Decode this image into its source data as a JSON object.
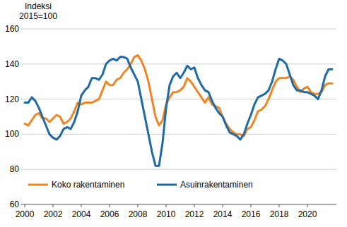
{
  "chart_data": {
    "type": "line",
    "y_label": "Indeksi 2015=100",
    "x": [
      2000,
      2000.25,
      2000.5,
      2000.75,
      2001,
      2001.25,
      2001.5,
      2001.75,
      2002,
      2002.25,
      2002.5,
      2002.75,
      2003,
      2003.25,
      2003.5,
      2003.75,
      2004,
      2004.25,
      2004.5,
      2004.75,
      2005,
      2005.25,
      2005.5,
      2005.75,
      2006,
      2006.25,
      2006.5,
      2006.75,
      2007,
      2007.25,
      2007.5,
      2007.75,
      2008,
      2008.25,
      2008.5,
      2008.75,
      2009,
      2009.25,
      2009.5,
      2009.75,
      2010,
      2010.25,
      2010.5,
      2010.75,
      2011,
      2011.25,
      2011.5,
      2011.75,
      2012,
      2012.25,
      2012.5,
      2012.75,
      2013,
      2013.25,
      2013.5,
      2013.75,
      2014,
      2014.25,
      2014.5,
      2014.75,
      2015,
      2015.25,
      2015.5,
      2015.75,
      2016,
      2016.25,
      2016.5,
      2016.75,
      2017,
      2017.25,
      2017.5,
      2017.75,
      2018,
      2018.25,
      2018.5,
      2018.75,
      2019,
      2019.25,
      2019.5,
      2019.75,
      2020,
      2020.25,
      2020.5,
      2020.75,
      2021,
      2021.25,
      2021.5,
      2021.75
    ],
    "series": [
      {
        "name": "Koko rakentaminen",
        "color": "#ef8523",
        "values": [
          106,
          105,
          108,
          111,
          112,
          109,
          109,
          107,
          109,
          111,
          110,
          106,
          107,
          109,
          113,
          118,
          117,
          118,
          118,
          118,
          119,
          120,
          125,
          130,
          128,
          128,
          131,
          132,
          135,
          137,
          140,
          144,
          145,
          142,
          137,
          130,
          120,
          110,
          105,
          108,
          117,
          121,
          124,
          124,
          125,
          127,
          132,
          130,
          127,
          124,
          121,
          118,
          121,
          117,
          116,
          115,
          110,
          106,
          103,
          101,
          100,
          100,
          99,
          103,
          104,
          108,
          113,
          114,
          116,
          120,
          125,
          130,
          132,
          132,
          132,
          133,
          131,
          127,
          124,
          126,
          127,
          124,
          123,
          123,
          124,
          128,
          129,
          129
        ]
      },
      {
        "name": "Asuinrakentaminen",
        "color": "#1d6aa5",
        "values": [
          118,
          118,
          121,
          119,
          115,
          110,
          105,
          100,
          98,
          97,
          99,
          103,
          104,
          103,
          107,
          113,
          122,
          125,
          127,
          132,
          132,
          131,
          134,
          140,
          142,
          143,
          142,
          144,
          144,
          143,
          138,
          134,
          130,
          120,
          110,
          100,
          90,
          82,
          82,
          95,
          115,
          128,
          133,
          135,
          132,
          135,
          139,
          137,
          138,
          132,
          128,
          125,
          124,
          119,
          115,
          112,
          110,
          105,
          101,
          100,
          99,
          97,
          100,
          106,
          111,
          117,
          121,
          122,
          123,
          125,
          130,
          137,
          143,
          142,
          140,
          134,
          128,
          125,
          125,
          124,
          124,
          123,
          122,
          120,
          125,
          133,
          137,
          137
        ]
      }
    ],
    "xlim": [
      2000,
      2021.75
    ],
    "xticks": [
      2000,
      2002,
      2004,
      2006,
      2008,
      2010,
      2012,
      2014,
      2016,
      2018,
      2020
    ],
    "ylim": [
      60,
      160
    ],
    "yticks": [
      60,
      80,
      100,
      120,
      140,
      160
    ],
    "grid": true,
    "legend": "bottom"
  }
}
